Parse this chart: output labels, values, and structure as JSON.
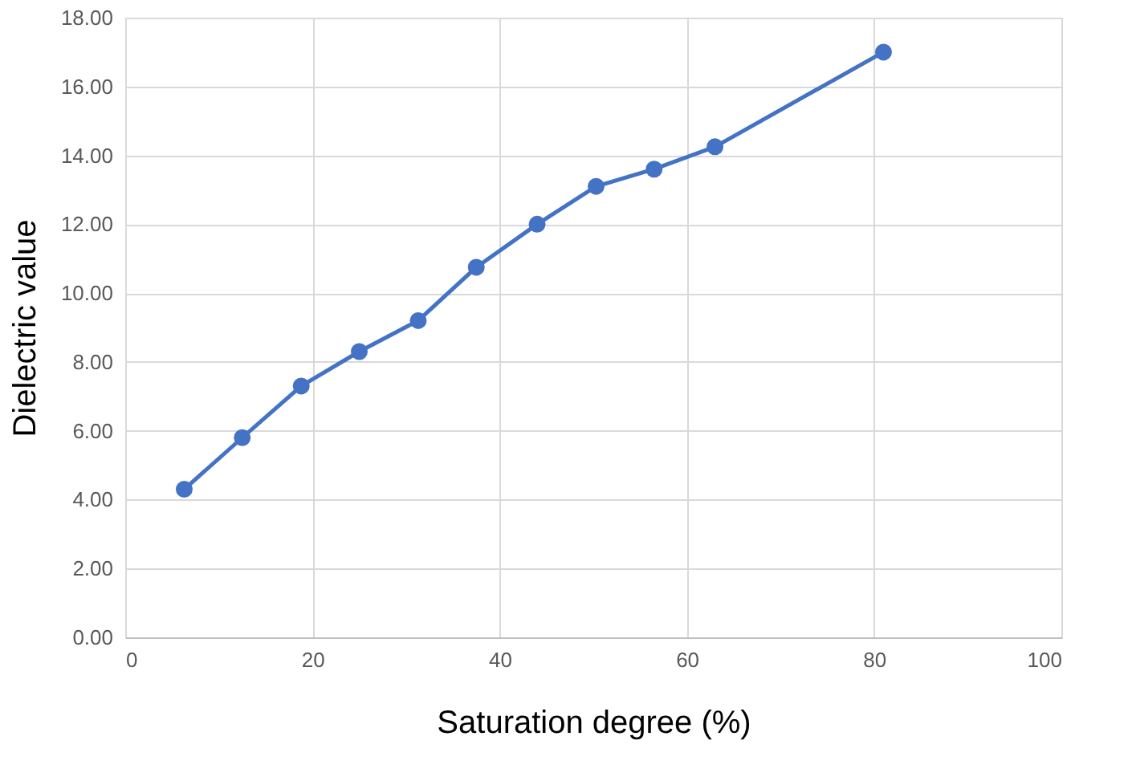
{
  "chart_data": {
    "type": "line",
    "xlabel": "Saturation degree (%)",
    "ylabel": "Dielectric value",
    "x": [
      6.3,
      12.5,
      18.8,
      25,
      31.3,
      37.5,
      44,
      50.3,
      56.5,
      63,
      81
    ],
    "series": [
      {
        "color": "#4472c4",
        "values": [
          4.3,
          5.8,
          7.3,
          8.3,
          9.2,
          10.75,
          12.0,
          13.1,
          13.6,
          14.25,
          17.0
        ]
      }
    ],
    "xlim": [
      0,
      100
    ],
    "xticks": [
      0,
      20,
      40,
      60,
      80,
      100
    ],
    "ylim": [
      0,
      18
    ],
    "yticks": [
      {
        "value": 0,
        "label": "0.00"
      },
      {
        "value": 2,
        "label": "2.00"
      },
      {
        "value": 4,
        "label": "4.00"
      },
      {
        "value": 6,
        "label": "6.00"
      },
      {
        "value": 8,
        "label": "8.00"
      },
      {
        "value": 10,
        "label": "10.00"
      },
      {
        "value": 12,
        "label": "12.00"
      },
      {
        "value": 14,
        "label": "14.00"
      },
      {
        "value": 16,
        "label": "16.00"
      },
      {
        "value": 18,
        "label": "18.00"
      }
    ],
    "grid": true,
    "marker": "circle",
    "line_style": "solid"
  }
}
